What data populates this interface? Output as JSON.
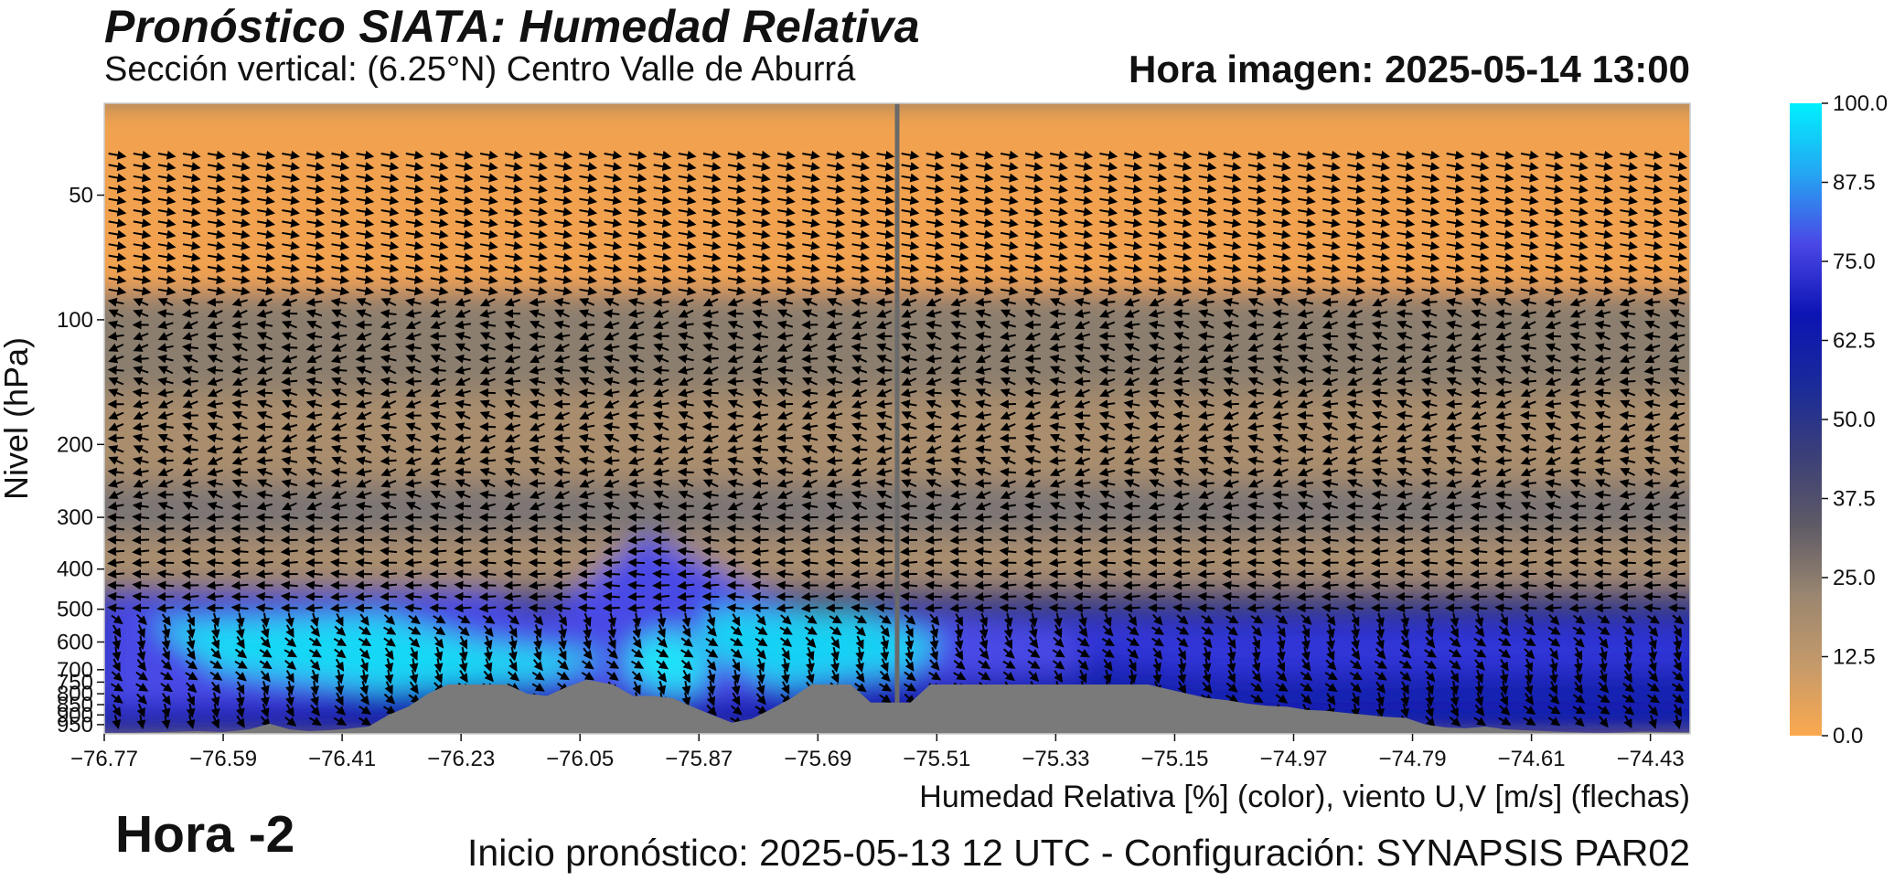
{
  "header": {
    "title": "Pronóstico SIATA: Humedad Relativa",
    "subtitle": "Sección vertical: (6.25°N) Centro Valle de Aburrá",
    "hora_imagen": "Hora imagen: 2025-05-14 13:00"
  },
  "footer": {
    "variable_label": "Humedad Relativa [%] (color), viento U,V [m/s] (flechas)",
    "init_label": "Inicio pronóstico: 2025-05-13 12 UTC - Configuración: SYNAPSIS PAR02",
    "relative_hour": "Hora -2"
  },
  "chart_data": {
    "type": "heatmap",
    "ylabel": "Nivel (hPa)",
    "xlabel": "",
    "x_ticks": [
      "−76.77",
      "−76.59",
      "−76.41",
      "−76.23",
      "−76.05",
      "−75.87",
      "−75.69",
      "−75.51",
      "−75.33",
      "−75.15",
      "−74.97",
      "−74.79",
      "−74.61",
      "−74.43"
    ],
    "x_tick_values": [
      -76.77,
      -76.59,
      -76.41,
      -76.23,
      -76.05,
      -75.87,
      -75.69,
      -75.51,
      -75.33,
      -75.15,
      -74.97,
      -74.79,
      -74.61,
      -74.43
    ],
    "xlim": [
      -76.77,
      -74.37
    ],
    "y_ticks": [
      "50",
      "100",
      "200",
      "300",
      "400",
      "500",
      "600",
      "700",
      "750",
      "800",
      "850",
      "900",
      "950"
    ],
    "y_tick_values": [
      50,
      100,
      200,
      300,
      400,
      500,
      600,
      700,
      750,
      800,
      850,
      900,
      950
    ],
    "ylim": [
      1000,
      30
    ],
    "colorbar": {
      "ticks": [
        "0.0",
        "12.5",
        "25.0",
        "37.5",
        "50.0",
        "62.5",
        "75.0",
        "87.5",
        "100.0"
      ],
      "tick_values": [
        0,
        12.5,
        25,
        37.5,
        50,
        62.5,
        75,
        87.5,
        100
      ],
      "colors": [
        "#fba94e",
        "#c59a6a",
        "#9a8670",
        "#5e5a66",
        "#3b3f78",
        "#1a2a9a",
        "#0d14b4",
        "#4a48e6",
        "#24a6f2",
        "#00f0ff"
      ]
    },
    "vertical_marker_lon": -75.57,
    "terrain": {
      "color": "#7a7a7a",
      "lon": [
        -76.77,
        -76.72,
        -76.68,
        -76.63,
        -76.59,
        -76.55,
        -76.52,
        -76.49,
        -76.46,
        -76.43,
        -76.4,
        -76.37,
        -76.34,
        -76.31,
        -76.28,
        -76.25,
        -76.22,
        -76.19,
        -76.16,
        -76.13,
        -76.1,
        -76.07,
        -76.04,
        -76.0,
        -75.97,
        -75.94,
        -75.91,
        -75.88,
        -75.85,
        -75.82,
        -75.79,
        -75.76,
        -75.73,
        -75.7,
        -75.67,
        -75.64,
        -75.61,
        -75.58,
        -75.55,
        -75.52,
        -75.49,
        -75.46,
        -75.43,
        -75.4,
        -75.37,
        -75.34,
        -75.31,
        -75.28,
        -75.25,
        -75.22,
        -75.19,
        -75.16,
        -75.13,
        -75.1,
        -75.07,
        -75.04,
        -75.01,
        -74.98,
        -74.95,
        -74.92,
        -74.89,
        -74.86,
        -74.83,
        -74.8,
        -74.77,
        -74.74,
        -74.71,
        -74.68,
        -74.65,
        -74.62,
        -74.59,
        -74.56,
        -74.53,
        -74.5,
        -74.47,
        -74.44,
        -74.41,
        -74.37
      ],
      "pressure": [
        995,
        993,
        990,
        985,
        990,
        975,
        945,
        975,
        985,
        980,
        972,
        960,
        900,
        860,
        800,
        760,
        760,
        760,
        760,
        800,
        810,
        770,
        740,
        760,
        810,
        810,
        820,
        860,
        900,
        940,
        920,
        870,
        820,
        760,
        760,
        760,
        840,
        840,
        840,
        760,
        760,
        760,
        760,
        760,
        760,
        760,
        760,
        760,
        760,
        760,
        760,
        780,
        800,
        820,
        830,
        845,
        855,
        860,
        875,
        880,
        890,
        900,
        910,
        915,
        950,
        965,
        970,
        960,
        975,
        980,
        985,
        990,
        993,
        995,
        992,
        988,
        990,
        992
      ]
    },
    "rh_field_description_levels_hpa": [
      50,
      100,
      200,
      300,
      400,
      500,
      600,
      700,
      800,
      900
    ]
  }
}
